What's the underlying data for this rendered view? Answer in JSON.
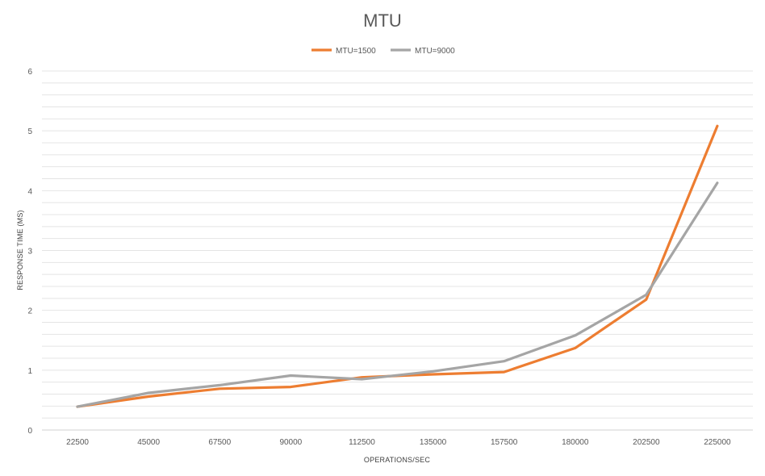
{
  "chart_data": {
    "type": "line",
    "title": "MTU",
    "xlabel": "OPERATIONS/SEC",
    "ylabel": "RESPONSE TIME (MS)",
    "categories": [
      "22500",
      "45000",
      "67500",
      "90000",
      "112500",
      "135000",
      "157500",
      "180000",
      "202500",
      "225000"
    ],
    "ylim": [
      0,
      6
    ],
    "yticks": [
      0,
      1,
      2,
      3,
      4,
      5,
      6
    ],
    "y_minor_step": 0.2,
    "grid": true,
    "legend_position": "top-center",
    "series": [
      {
        "name": "MTU=1500",
        "color": "#ed7d31",
        "values": [
          0.39,
          0.56,
          0.69,
          0.72,
          0.88,
          0.93,
          0.97,
          1.37,
          2.18,
          5.08
        ]
      },
      {
        "name": "MTU=9000",
        "color": "#a5a5a5",
        "values": [
          0.39,
          0.62,
          0.75,
          0.91,
          0.85,
          0.98,
          1.15,
          1.58,
          2.26,
          4.13
        ]
      }
    ]
  }
}
